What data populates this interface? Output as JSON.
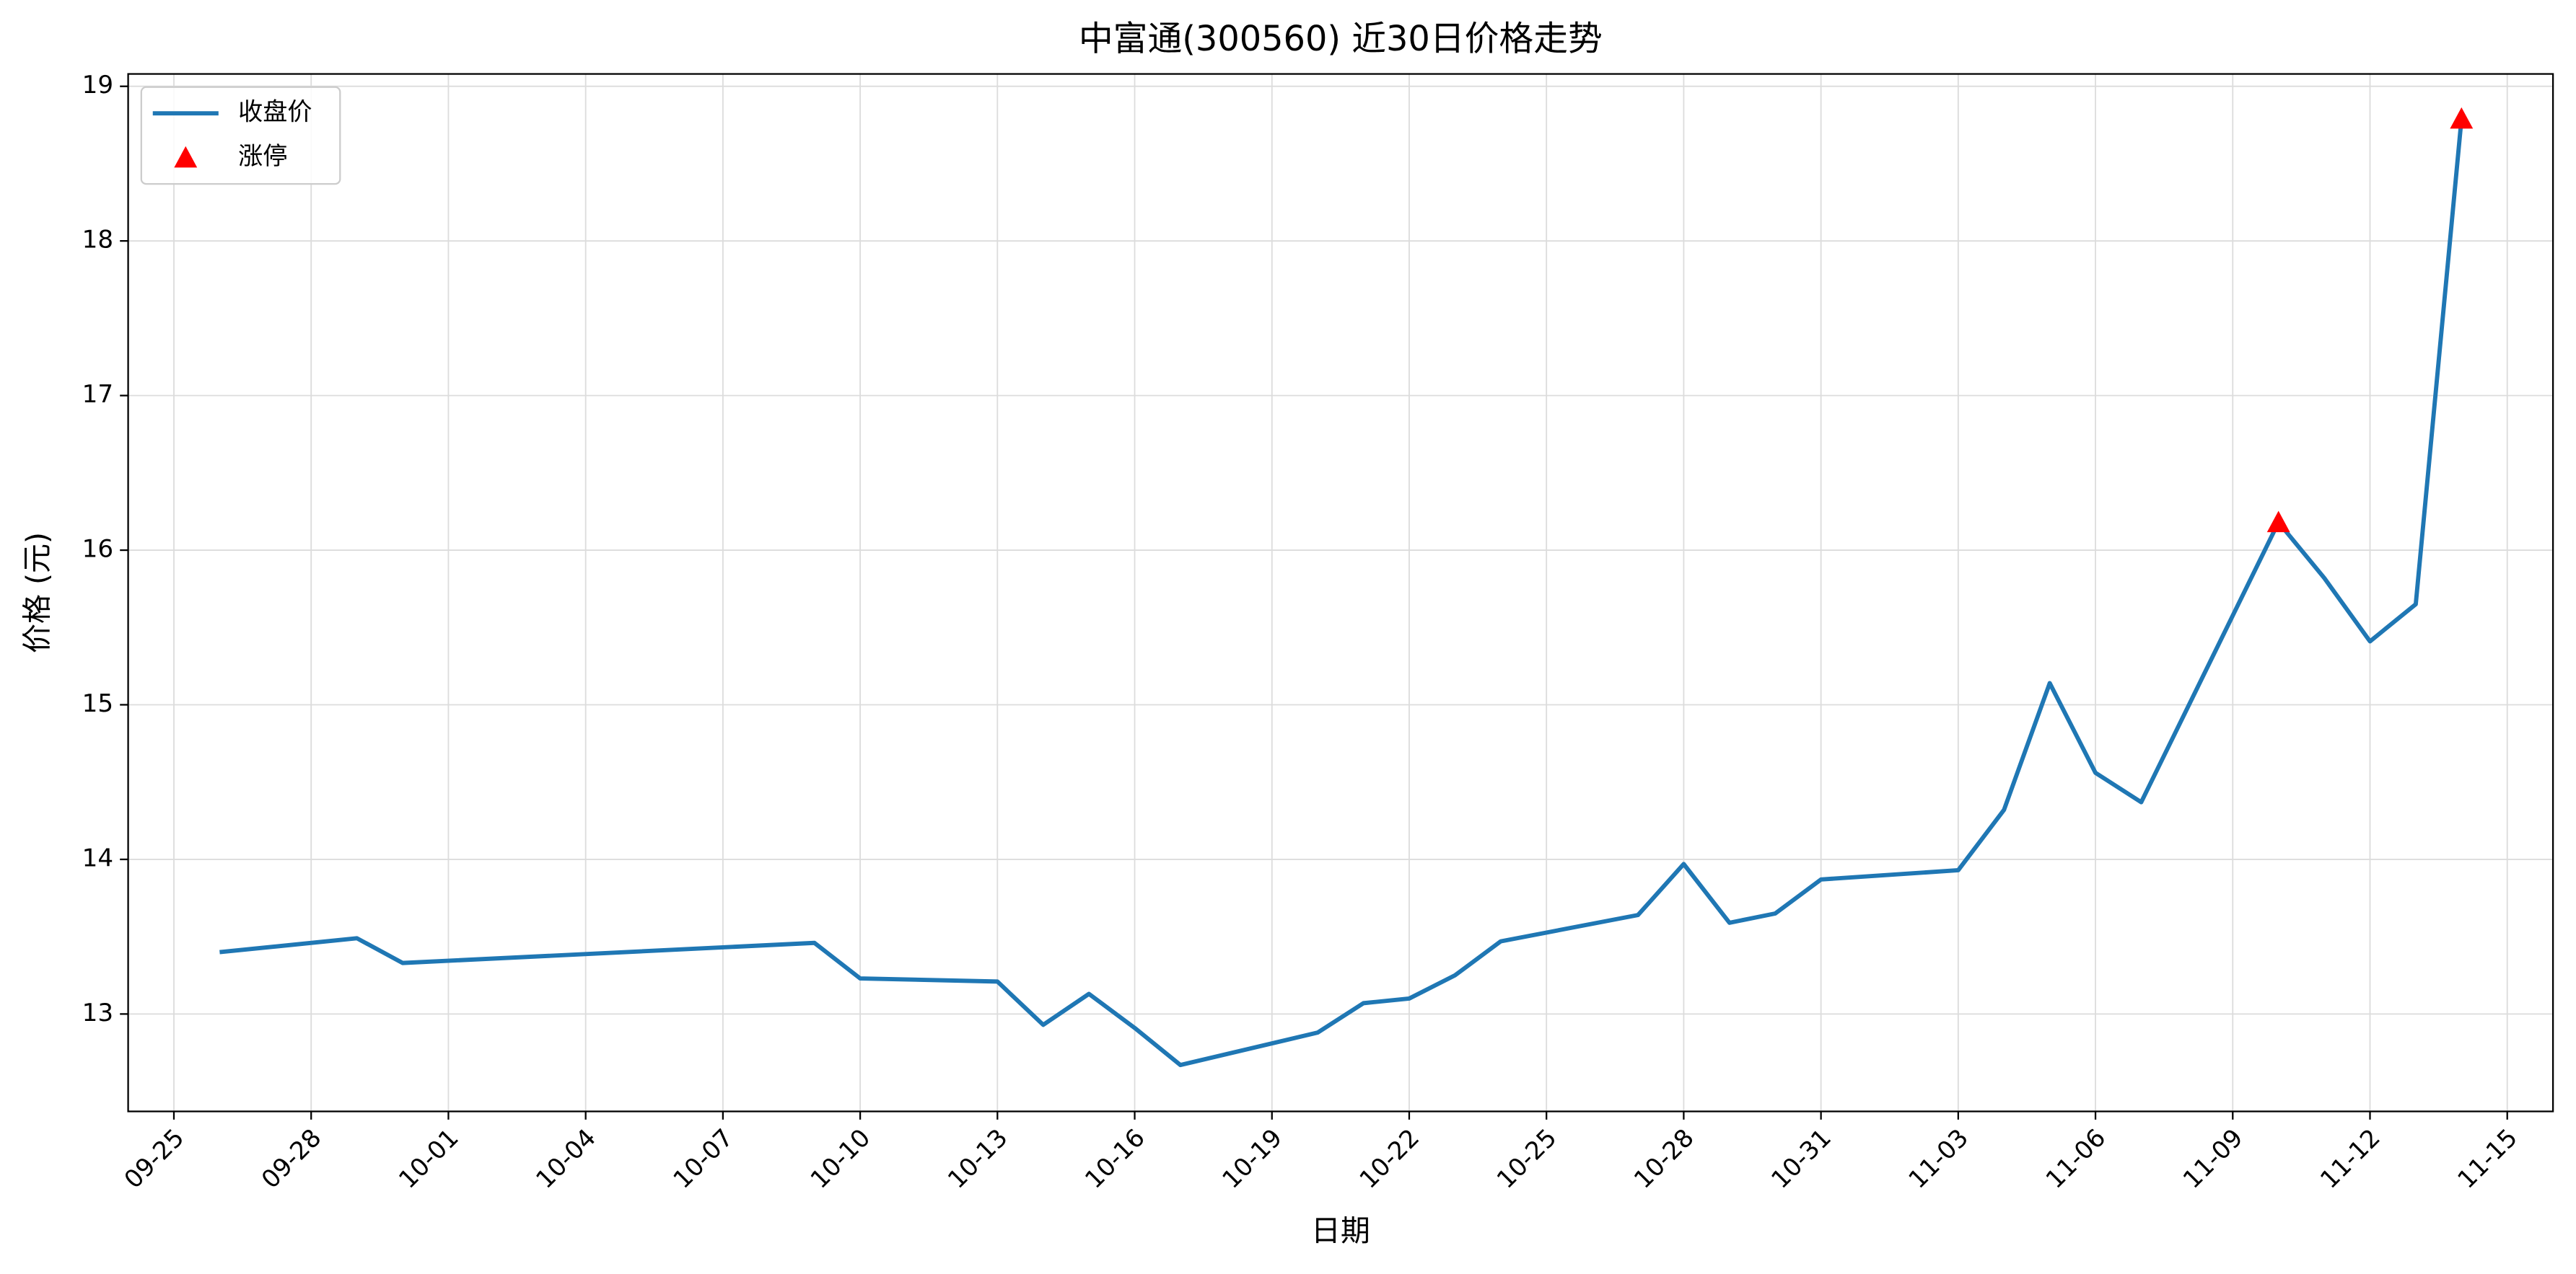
{
  "chart_data": {
    "type": "line",
    "title": "中富通(300560) 近30日价格走势",
    "x_label": "日期",
    "y_label": "价格 (元)",
    "series": [
      {
        "name": "收盘价",
        "type": "line",
        "color": "#1f77b4",
        "x": [
          "09-26",
          "09-29",
          "09-30",
          "10-09",
          "10-10",
          "10-13",
          "10-14",
          "10-15",
          "10-16",
          "10-17",
          "10-20",
          "10-21",
          "10-22",
          "10-23",
          "10-24",
          "10-27",
          "10-28",
          "10-29",
          "10-30",
          "10-31",
          "11-03",
          "11-04",
          "11-05",
          "11-06",
          "11-07",
          "11-10",
          "11-11",
          "11-12",
          "11-13",
          "11-14"
        ],
        "values": [
          13.4,
          13.49,
          13.33,
          13.46,
          13.23,
          13.21,
          12.93,
          13.13,
          12.91,
          12.67,
          12.88,
          13.07,
          13.1,
          13.25,
          13.47,
          13.64,
          13.97,
          13.59,
          13.65,
          13.87,
          13.93,
          14.32,
          15.14,
          14.56,
          14.37,
          16.18,
          15.82,
          15.41,
          15.65,
          18.79
        ]
      },
      {
        "name": "涨停",
        "type": "scatter",
        "marker": "triangle",
        "color": "#ff0000",
        "x": [
          "11-10",
          "11-14"
        ],
        "values": [
          16.18,
          18.79
        ]
      }
    ],
    "xlim": [
      "09-24",
      "11-16"
    ],
    "xticks": [
      "09-25",
      "09-28",
      "10-01",
      "10-04",
      "10-07",
      "10-10",
      "10-13",
      "10-16",
      "10-19",
      "10-22",
      "10-25",
      "10-28",
      "10-31",
      "11-03",
      "11-06",
      "11-09",
      "11-12",
      "11-15"
    ],
    "ylim": [
      12.37,
      19.08
    ],
    "yticks": [
      13,
      14,
      15,
      16,
      17,
      18,
      19
    ],
    "grid": true,
    "legend": "upper-left"
  }
}
